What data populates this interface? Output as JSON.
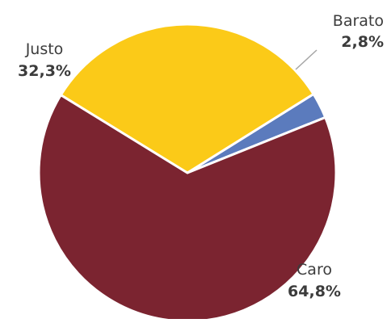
{
  "chart_data": {
    "type": "pie",
    "slices": [
      {
        "label": "Barato",
        "value": 2.8,
        "value_label": "2,8%",
        "color": "#5b7bbd"
      },
      {
        "label": "Caro",
        "value": 64.8,
        "value_label": "64,8%",
        "color": "#7b2430"
      },
      {
        "label": "Justo",
        "value": 32.3,
        "value_label": "32,3%",
        "color": "#fbca18"
      }
    ],
    "start_angle_deg": 58,
    "direction": "clockwise",
    "legend": "none",
    "slice_border_color": "#ffffff",
    "leader_line_color": "#a6a6a6"
  }
}
